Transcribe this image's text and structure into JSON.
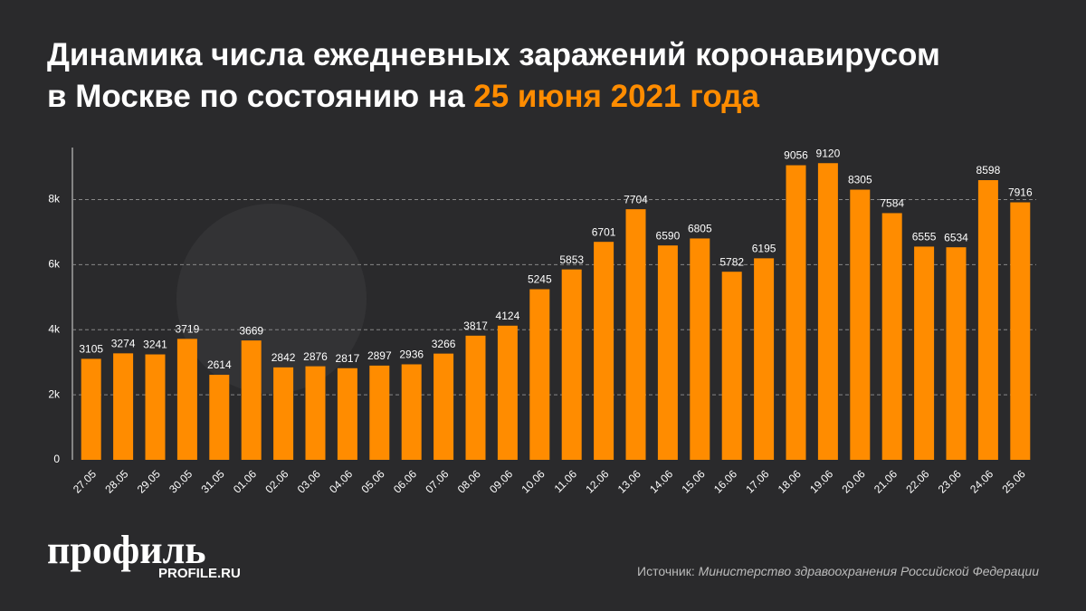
{
  "chart_data": {
    "type": "bar",
    "title": [
      "Динамика числа ежедневных заражений коронавирусом",
      "в Москве по состоянию на"
    ],
    "title_highlight": "25 июня 2021 года",
    "categories": [
      "27.05",
      "28.05",
      "29.05",
      "30.05",
      "31.05",
      "01.06",
      "02.06",
      "03.06",
      "04.06",
      "05.06",
      "06.06",
      "07.06",
      "08.06",
      "09.06",
      "10.06",
      "11.06",
      "12.06",
      "13.06",
      "14.06",
      "15.06",
      "16.06",
      "17.06",
      "18.06",
      "19.06",
      "20.06",
      "21.06",
      "22.06",
      "23.06",
      "24.06",
      "25.06"
    ],
    "values": [
      3105,
      3274,
      3241,
      3719,
      2614,
      3669,
      2842,
      2876,
      2817,
      2897,
      2936,
      3266,
      3817,
      4124,
      5245,
      5853,
      6701,
      7704,
      6590,
      6805,
      5782,
      6195,
      9056,
      9120,
      8305,
      7584,
      6555,
      6534,
      8598,
      7916
    ],
    "color": "#ff8c00",
    "ylim": [
      0,
      9600
    ],
    "yticks": [
      0,
      {
        "value": 2000,
        "label": "2k"
      },
      {
        "value": 4000,
        "label": "4k"
      },
      {
        "value": 6000,
        "label": "6k"
      },
      {
        "value": 8000,
        "label": "8k"
      }
    ],
    "grid": true,
    "source_label": "Источник:",
    "source": "Министерство здравоохранения Российской Федерации",
    "logo": "профиль",
    "logo_url": "PROFILE.RU"
  }
}
